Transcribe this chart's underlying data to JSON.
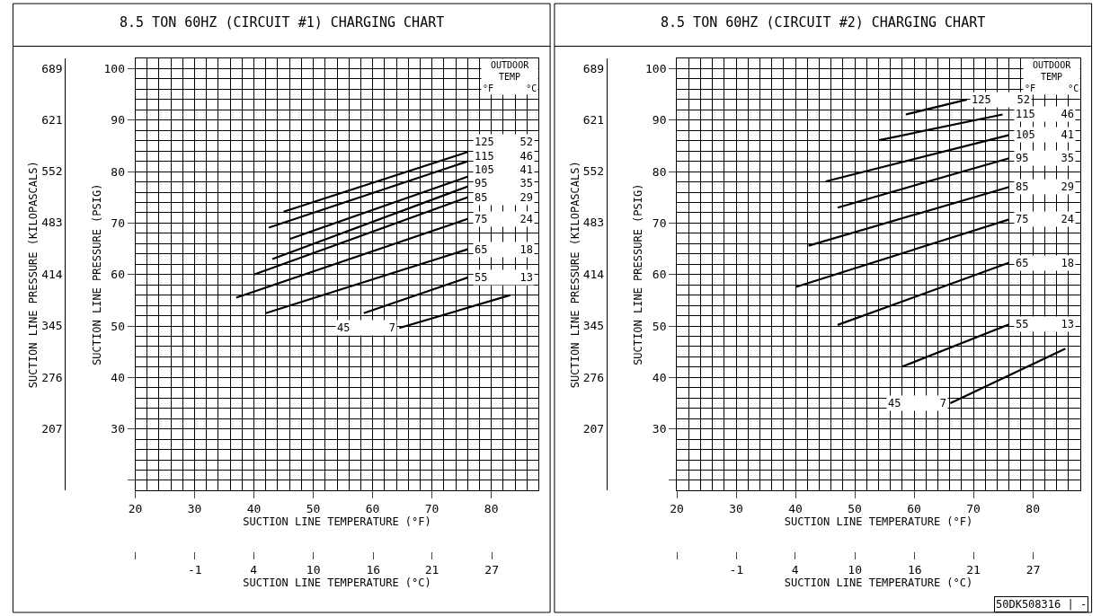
{
  "chart_data": [
    {
      "type": "line",
      "title": "8.5 TON 60HZ (CIRCUIT #1) CHARGING CHART",
      "xlabel": "SUCTION LINE TEMPERATURE (°F)",
      "x2label": "SUCTION LINE TEMPERATURE (°C)",
      "ylabel": "SUCTION LINE PRESSURE (PSIG)",
      "y2label": "SUCTION LINE PRESSURE (KILOPASCALS)",
      "legend_title": "OUTDOOR\nTEMP\n°F      °C",
      "xlim": [
        20,
        88
      ],
      "xticks": [
        20,
        30,
        40,
        50,
        60,
        70,
        80
      ],
      "x2lim": [
        -6.67,
        31.1
      ],
      "x2ticks": [
        {
          "value": -6.67,
          "label": null
        },
        {
          "value": -1.1,
          "label": "-1"
        },
        {
          "value": 4.4,
          "label": "4"
        },
        {
          "value": 10,
          "label": "10"
        },
        {
          "value": 15.6,
          "label": "16"
        },
        {
          "value": 21.1,
          "label": "21"
        },
        {
          "value": 26.7,
          "label": "27"
        }
      ],
      "ylim": [
        18,
        102
      ],
      "yticks": [
        {
          "value": 20,
          "label": null
        },
        30,
        40,
        50,
        60,
        70,
        80,
        90,
        100
      ],
      "y2lim": [
        124,
        703
      ],
      "y2ticks": [
        207,
        276,
        345,
        414,
        483,
        552,
        621,
        689
      ],
      "grid": true,
      "legend": "right",
      "marker": "none",
      "line_style": "solid",
      "series": [
        {
          "name": "125    52",
          "color": "#000000",
          "x": [
            45.0,
            76.0
          ],
          "values": [
            72.2,
            83.8
          ]
        },
        {
          "name": "115    46",
          "color": "#000000",
          "x": [
            42.5,
            76.0
          ],
          "values": [
            69.1,
            82.0
          ]
        },
        {
          "name": "105    41",
          "color": "#000000",
          "x": [
            46.0,
            76.0
          ],
          "values": [
            66.9,
            79.0
          ]
        },
        {
          "name": "95     35",
          "color": "#000000",
          "x": [
            43.1,
            76.0
          ],
          "values": [
            63.0,
            77.1
          ]
        },
        {
          "name": "85     29",
          "color": "#000000",
          "x": [
            40.0,
            76.0
          ],
          "values": [
            60.0,
            75.0
          ]
        },
        {
          "name": "75     24",
          "color": "#000000",
          "x": [
            37.0,
            76.0
          ],
          "values": [
            55.5,
            70.8
          ]
        },
        {
          "name": "65     18",
          "color": "#000000",
          "x": [
            42.0,
            76.0
          ],
          "values": [
            52.5,
            64.9
          ]
        },
        {
          "name": "55     13",
          "color": "#000000",
          "x": [
            58.5,
            76.0
          ],
          "values": [
            52.5,
            59.4
          ]
        },
        {
          "name": "45      7",
          "color": "#000000",
          "x": [
            64.5,
            83.2
          ],
          "values": [
            49.6,
            56.0
          ]
        }
      ]
    },
    {
      "type": "line",
      "title": "8.5 TON 60HZ (CIRCUIT #2) CHARGING CHART",
      "xlabel": "SUCTION LINE TEMPERATURE (°F)",
      "x2label": "SUCTION LINE TEMPERATURE (°C)",
      "ylabel": "SUCTION LINE PRESSURE (PSIG)",
      "y2label": "SUCTION LINE PRESSURE (KILOPASCALS)",
      "legend_title": "OUTDOOR\nTEMP\n°F      °C",
      "annotations": [
        "50DK508316 | -"
      ],
      "xlim": [
        20,
        88
      ],
      "xticks": [
        20,
        30,
        40,
        50,
        60,
        70,
        80
      ],
      "x2lim": [
        -6.67,
        31.1
      ],
      "x2ticks": [
        {
          "value": -6.67,
          "label": null
        },
        {
          "value": -1.1,
          "label": "-1"
        },
        {
          "value": 4.4,
          "label": "4"
        },
        {
          "value": 10,
          "label": "10"
        },
        {
          "value": 15.6,
          "label": "16"
        },
        {
          "value": 21.1,
          "label": "21"
        },
        {
          "value": 26.7,
          "label": "27"
        }
      ],
      "ylim": [
        18,
        102
      ],
      "yticks": [
        {
          "value": 20,
          "label": null
        },
        30,
        40,
        50,
        60,
        70,
        80,
        90,
        100
      ],
      "y2lim": [
        124,
        703
      ],
      "y2ticks": [
        207,
        276,
        345,
        414,
        483,
        552,
        621,
        689
      ],
      "grid": true,
      "legend": "right",
      "marker": "none",
      "line_style": "solid",
      "series": [
        {
          "name": "125    52",
          "color": "#000000",
          "x": [
            58.6,
            68.9
          ],
          "values": [
            91.1,
            94.0
          ]
        },
        {
          "name": "115    46",
          "color": "#000000",
          "x": [
            54.1,
            74.9
          ],
          "values": [
            86.1,
            91.1
          ]
        },
        {
          "name": "105    41",
          "color": "#000000",
          "x": [
            45.1,
            76.0
          ],
          "values": [
            78.1,
            87.1
          ]
        },
        {
          "name": "95     35",
          "color": "#000000",
          "x": [
            47.1,
            76.0
          ],
          "values": [
            73.0,
            82.6
          ]
        },
        {
          "name": "85     29",
          "color": "#000000",
          "x": [
            42.2,
            76.0
          ],
          "values": [
            65.6,
            77.0
          ]
        },
        {
          "name": "75     24",
          "color": "#000000",
          "x": [
            40.1,
            76.0
          ],
          "values": [
            57.6,
            70.7
          ]
        },
        {
          "name": "65     18",
          "color": "#000000",
          "x": [
            47.1,
            76.0
          ],
          "values": [
            50.2,
            62.3
          ]
        },
        {
          "name": "55     13",
          "color": "#000000",
          "x": [
            58.0,
            76.0
          ],
          "values": [
            42.1,
            50.3
          ]
        },
        {
          "name": "45      7",
          "color": "#000000",
          "x": [
            66.1,
            85.5
          ],
          "values": [
            35.0,
            45.6
          ]
        }
      ]
    }
  ]
}
